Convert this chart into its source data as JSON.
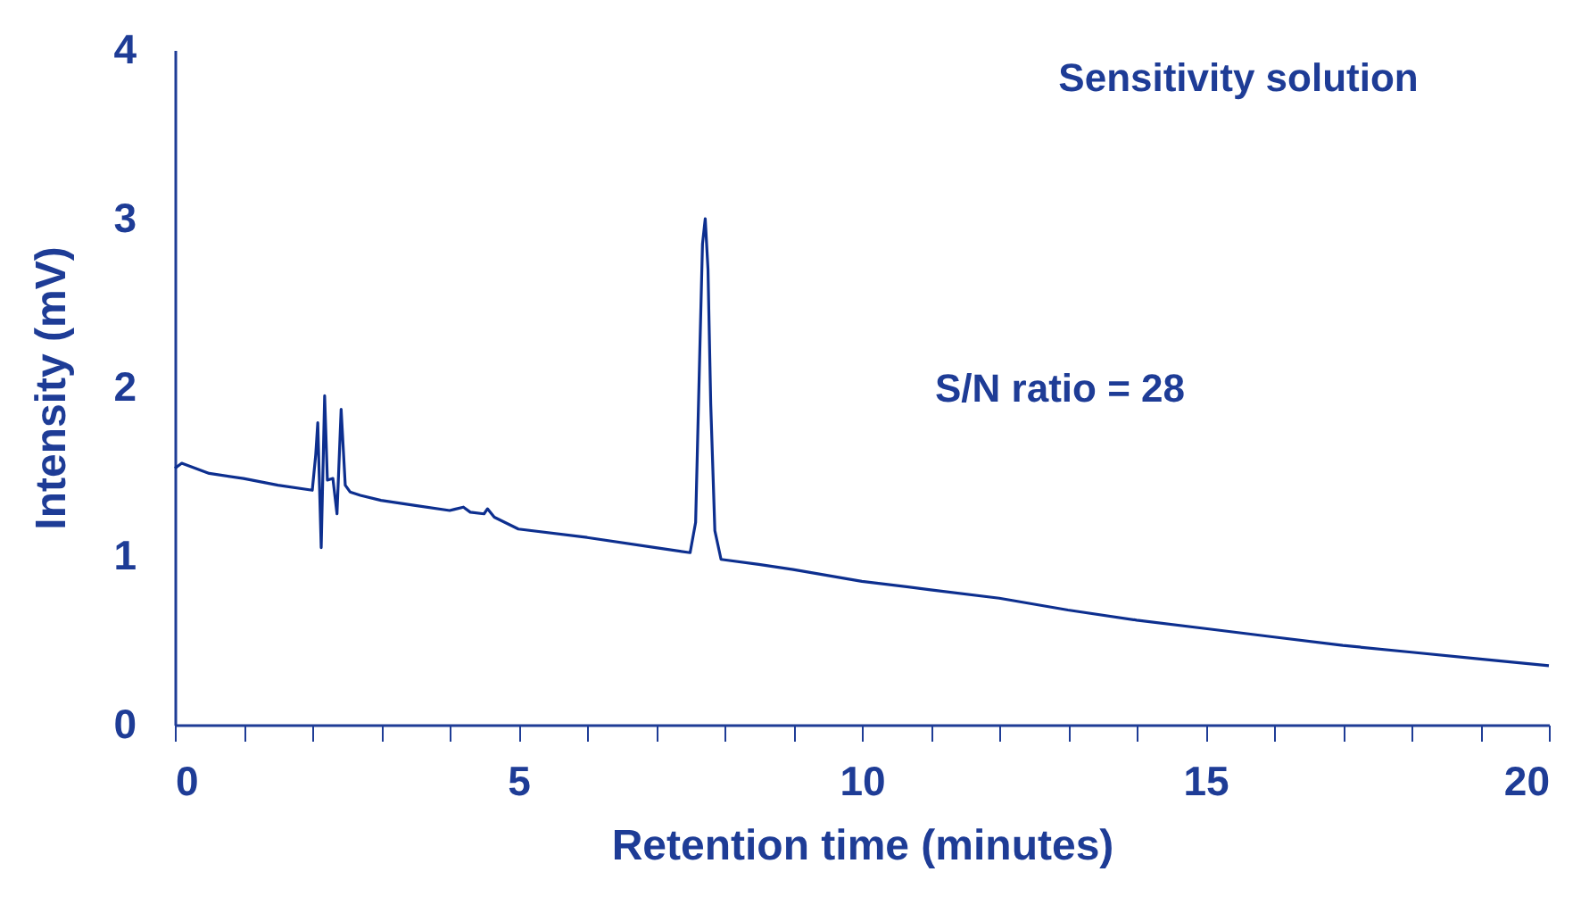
{
  "chart_data": {
    "type": "line",
    "xlabel": "Retention time (minutes)",
    "ylabel": "Intensity (mV)",
    "annotations": [
      "Sensitivity solution",
      "S/N ratio = 28"
    ],
    "x": [
      0,
      0.1,
      0.5,
      1,
      1.5,
      2,
      2.05,
      2.08,
      2.13,
      2.18,
      2.22,
      2.3,
      2.36,
      2.42,
      2.48,
      2.55,
      2.7,
      3,
      3.5,
      4,
      4.2,
      4.3,
      4.5,
      4.55,
      4.65,
      5,
      6,
      7,
      7.5,
      7.58,
      7.64,
      7.68,
      7.72,
      7.76,
      7.8,
      7.86,
      7.95,
      8.5,
      9,
      10,
      11,
      12,
      13,
      14,
      15,
      16,
      17,
      18,
      19,
      20
    ],
    "series": [
      {
        "color": "#0d2f8f",
        "values": [
          1.52,
          1.55,
          1.49,
          1.46,
          1.42,
          1.39,
          1.6,
          1.79,
          1.05,
          1.95,
          1.45,
          1.46,
          1.25,
          1.87,
          1.42,
          1.38,
          1.36,
          1.33,
          1.3,
          1.27,
          1.29,
          1.26,
          1.25,
          1.28,
          1.23,
          1.16,
          1.11,
          1.05,
          1.02,
          1.2,
          2.2,
          2.85,
          3.0,
          2.7,
          1.9,
          1.15,
          0.98,
          0.95,
          0.92,
          0.85,
          0.8,
          0.75,
          0.68,
          0.62,
          0.57,
          0.52,
          0.47,
          0.43,
          0.39,
          0.35
        ]
      }
    ],
    "xlim": [
      0,
      20
    ],
    "ylim": [
      0,
      4
    ],
    "xticks": [
      0,
      {
        "value": 1,
        "label": null
      },
      {
        "value": 2,
        "label": null
      },
      {
        "value": 3,
        "label": null
      },
      {
        "value": 4,
        "label": null
      },
      5,
      {
        "value": 6,
        "label": null
      },
      {
        "value": 7,
        "label": null
      },
      {
        "value": 8,
        "label": null
      },
      {
        "value": 9,
        "label": null
      },
      10,
      {
        "value": 11,
        "label": null
      },
      {
        "value": 12,
        "label": null
      },
      {
        "value": 13,
        "label": null
      },
      {
        "value": 14,
        "label": null
      },
      15,
      {
        "value": 16,
        "label": null
      },
      {
        "value": 17,
        "label": null
      },
      {
        "value": 18,
        "label": null
      },
      {
        "value": 19,
        "label": null
      },
      20
    ],
    "yticks": [
      0,
      1,
      2,
      3,
      4
    ],
    "grid": false
  }
}
